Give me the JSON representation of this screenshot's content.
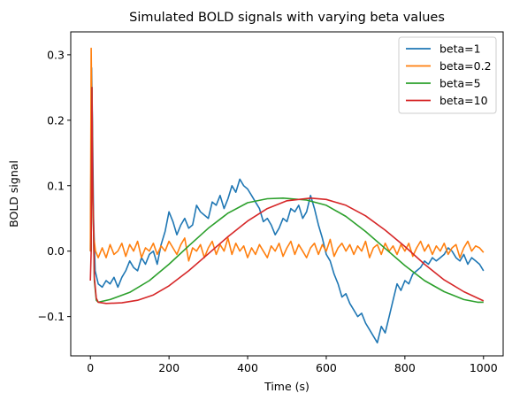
{
  "chart_data": {
    "type": "line",
    "title": "Simulated BOLD signals with varying beta values",
    "xlabel": "Time (s)",
    "ylabel": "BOLD signal",
    "xlim": [
      -50,
      1050
    ],
    "ylim": [
      -0.16,
      0.335
    ],
    "xticks": [
      0,
      200,
      400,
      600,
      800,
      1000
    ],
    "xtick_labels": [
      "0",
      "200",
      "400",
      "600",
      "800",
      "1000"
    ],
    "yticks": [
      -0.1,
      0.0,
      0.1,
      0.2,
      0.3
    ],
    "ytick_labels": [
      "−0.1",
      "0.0",
      "0.1",
      "0.2",
      "0.3"
    ],
    "grid": false,
    "legend_position": "top-right",
    "series": [
      {
        "name": "beta=1",
        "color": "#1f77b4",
        "x": [
          0,
          3,
          5,
          8,
          12,
          20,
          30,
          40,
          50,
          60,
          70,
          80,
          90,
          100,
          110,
          120,
          130,
          140,
          150,
          160,
          170,
          180,
          190,
          200,
          210,
          220,
          230,
          240,
          250,
          260,
          270,
          280,
          290,
          300,
          310,
          320,
          330,
          340,
          350,
          360,
          370,
          380,
          390,
          400,
          410,
          420,
          430,
          440,
          450,
          460,
          470,
          480,
          490,
          500,
          510,
          520,
          530,
          540,
          550,
          560,
          570,
          580,
          590,
          600,
          610,
          620,
          630,
          640,
          650,
          660,
          670,
          680,
          690,
          700,
          710,
          720,
          730,
          740,
          750,
          760,
          770,
          780,
          790,
          800,
          810,
          820,
          830,
          840,
          850,
          860,
          870,
          880,
          890,
          900,
          910,
          920,
          930,
          940,
          950,
          960,
          970,
          980,
          990,
          1000
        ],
        "y": [
          0.0,
          0.28,
          0.2,
          0.05,
          -0.03,
          -0.05,
          -0.055,
          -0.045,
          -0.05,
          -0.04,
          -0.055,
          -0.04,
          -0.03,
          -0.015,
          -0.025,
          -0.03,
          -0.01,
          -0.02,
          -0.005,
          0.0,
          -0.02,
          0.01,
          0.03,
          0.06,
          0.045,
          0.025,
          0.04,
          0.05,
          0.035,
          0.04,
          0.07,
          0.06,
          0.055,
          0.05,
          0.075,
          0.07,
          0.085,
          0.065,
          0.08,
          0.1,
          0.09,
          0.11,
          0.1,
          0.095,
          0.085,
          0.075,
          0.065,
          0.045,
          0.05,
          0.04,
          0.025,
          0.035,
          0.05,
          0.045,
          0.065,
          0.06,
          0.07,
          0.05,
          0.06,
          0.085,
          0.065,
          0.04,
          0.02,
          -0.005,
          -0.015,
          -0.035,
          -0.05,
          -0.07,
          -0.065,
          -0.08,
          -0.09,
          -0.1,
          -0.095,
          -0.11,
          -0.12,
          -0.13,
          -0.14,
          -0.115,
          -0.125,
          -0.1,
          -0.075,
          -0.05,
          -0.06,
          -0.045,
          -0.05,
          -0.035,
          -0.03,
          -0.025,
          -0.015,
          -0.02,
          -0.01,
          -0.015,
          -0.01,
          -0.005,
          0.005,
          0.0,
          -0.01,
          -0.015,
          -0.005,
          -0.02,
          -0.01,
          -0.015,
          -0.02,
          -0.03
        ]
      },
      {
        "name": "beta=0.2",
        "color": "#ff7f0e",
        "x": [
          0,
          2,
          4,
          6,
          9,
          13,
          20,
          30,
          40,
          50,
          60,
          70,
          80,
          90,
          100,
          110,
          120,
          130,
          140,
          150,
          160,
          170,
          180,
          190,
          200,
          210,
          220,
          230,
          240,
          250,
          260,
          270,
          280,
          290,
          300,
          310,
          320,
          330,
          340,
          350,
          360,
          370,
          380,
          390,
          400,
          410,
          420,
          430,
          440,
          450,
          460,
          470,
          480,
          490,
          500,
          510,
          520,
          530,
          540,
          550,
          560,
          570,
          580,
          590,
          600,
          610,
          620,
          630,
          640,
          650,
          660,
          670,
          680,
          690,
          700,
          710,
          720,
          730,
          740,
          750,
          760,
          770,
          780,
          790,
          800,
          810,
          820,
          830,
          840,
          850,
          860,
          870,
          880,
          890,
          900,
          910,
          920,
          930,
          940,
          950,
          960,
          970,
          980,
          990,
          1000
        ],
        "y": [
          0.0,
          0.31,
          0.2,
          0.08,
          0.02,
          0.0,
          -0.01,
          0.005,
          -0.01,
          0.01,
          -0.005,
          0.0,
          0.012,
          -0.008,
          0.01,
          0.0,
          0.015,
          -0.01,
          0.005,
          0.0,
          0.012,
          -0.005,
          0.008,
          0.0,
          0.015,
          0.005,
          -0.005,
          0.01,
          0.02,
          -0.015,
          0.005,
          0.0,
          0.01,
          -0.01,
          0.005,
          0.015,
          -0.005,
          0.01,
          0.0,
          0.02,
          -0.005,
          0.012,
          0.0,
          0.008,
          -0.01,
          0.005,
          -0.005,
          0.01,
          0.0,
          -0.01,
          0.008,
          0.0,
          0.012,
          -0.008,
          0.005,
          0.015,
          -0.005,
          0.01,
          0.0,
          -0.01,
          0.005,
          0.012,
          -0.005,
          0.01,
          0.0,
          0.018,
          -0.008,
          0.005,
          0.012,
          0.0,
          0.01,
          -0.005,
          0.008,
          0.0,
          0.015,
          -0.01,
          0.005,
          0.01,
          -0.005,
          0.012,
          0.0,
          0.008,
          -0.005,
          0.01,
          0.0,
          0.012,
          -0.008,
          0.005,
          0.015,
          0.0,
          0.01,
          -0.005,
          0.008,
          0.0,
          0.012,
          -0.005,
          0.005,
          0.01,
          -0.01,
          0.005,
          0.015,
          0.0,
          0.008,
          0.005,
          -0.002
        ]
      },
      {
        "name": "beta=5",
        "color": "#2ca02c",
        "x": [
          0,
          2,
          4,
          6,
          10,
          15,
          20,
          50,
          100,
          150,
          200,
          250,
          300,
          350,
          400,
          450,
          490,
          550,
          600,
          650,
          700,
          750,
          800,
          850,
          900,
          950,
          985,
          1000
        ],
        "y": [
          0.0,
          0.0,
          0.25,
          0.1,
          -0.045,
          -0.075,
          -0.078,
          -0.074,
          -0.063,
          -0.045,
          -0.02,
          0.008,
          0.035,
          0.058,
          0.074,
          0.08,
          0.081,
          0.078,
          0.07,
          0.053,
          0.03,
          0.004,
          -0.022,
          -0.045,
          -0.062,
          -0.074,
          -0.078,
          -0.078
        ]
      },
      {
        "name": "beta=10",
        "color": "#d62728",
        "x": [
          0,
          2,
          4,
          6,
          10,
          15,
          20,
          40,
          80,
          120,
          160,
          200,
          250,
          300,
          350,
          400,
          450,
          500,
          560,
          600,
          650,
          700,
          750,
          800,
          850,
          900,
          950,
          1000
        ],
        "y": [
          -0.045,
          0.0,
          0.25,
          0.1,
          -0.04,
          -0.072,
          -0.078,
          -0.08,
          -0.079,
          -0.075,
          -0.067,
          -0.053,
          -0.03,
          -0.004,
          0.022,
          0.046,
          0.065,
          0.077,
          0.081,
          0.079,
          0.07,
          0.054,
          0.032,
          0.007,
          -0.02,
          -0.044,
          -0.062,
          -0.076
        ]
      }
    ]
  }
}
